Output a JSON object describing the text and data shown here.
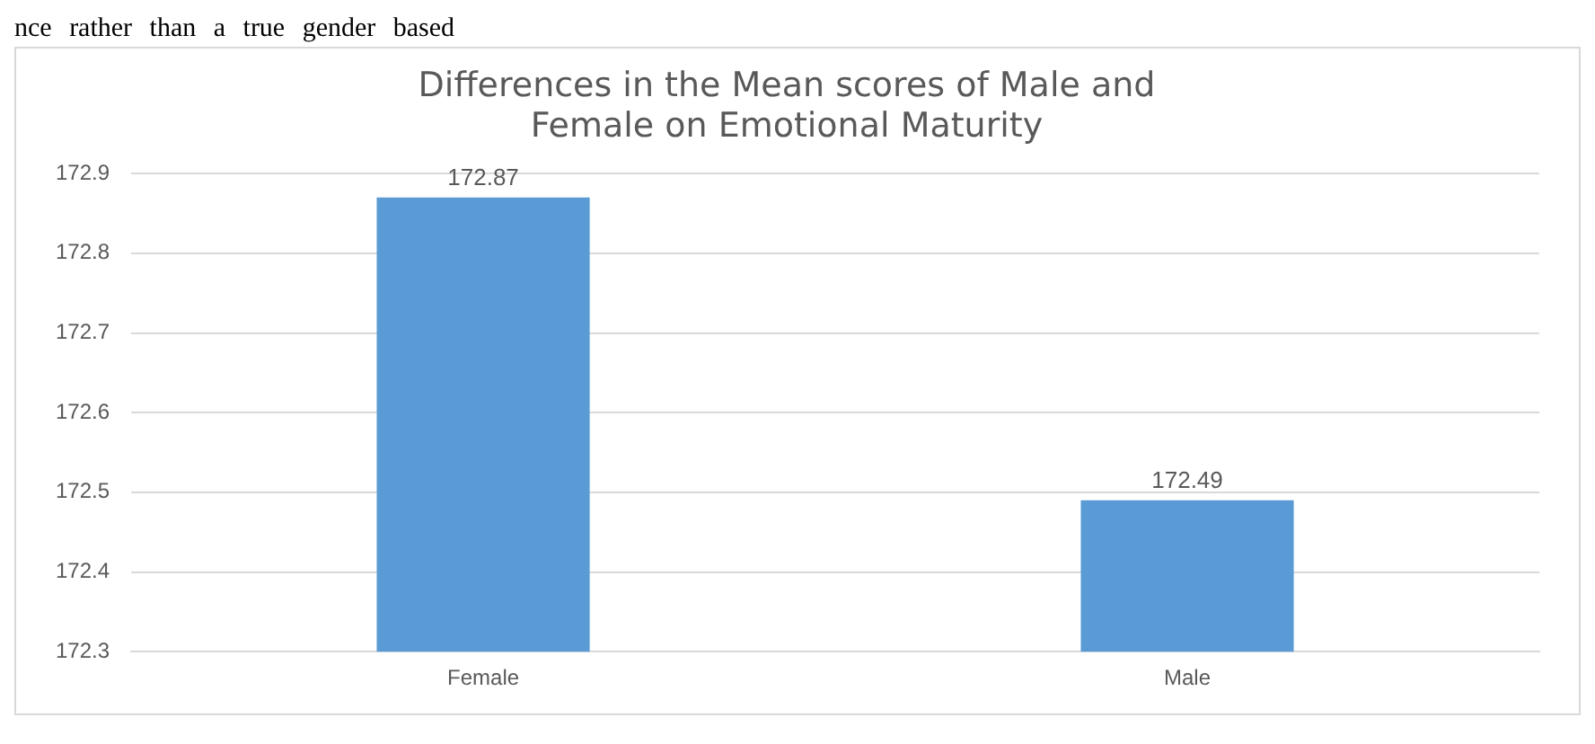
{
  "chart_data": {
    "type": "bar",
    "title": "Differences in the Mean scores of Male and Female on Emotional Maturity",
    "annotations": [
      "nce rather than a true gender based"
    ],
    "categories": [
      "Female",
      "Male"
    ],
    "values": [
      172.87,
      172.49
    ],
    "color": "#5b9bd5",
    "ylim": [
      172.3,
      172.9
    ],
    "yticks": [
      172.3,
      172.4,
      172.5,
      172.6,
      172.7,
      172.8,
      172.9
    ],
    "grid": "y",
    "data_labels": true,
    "legend": false
  }
}
